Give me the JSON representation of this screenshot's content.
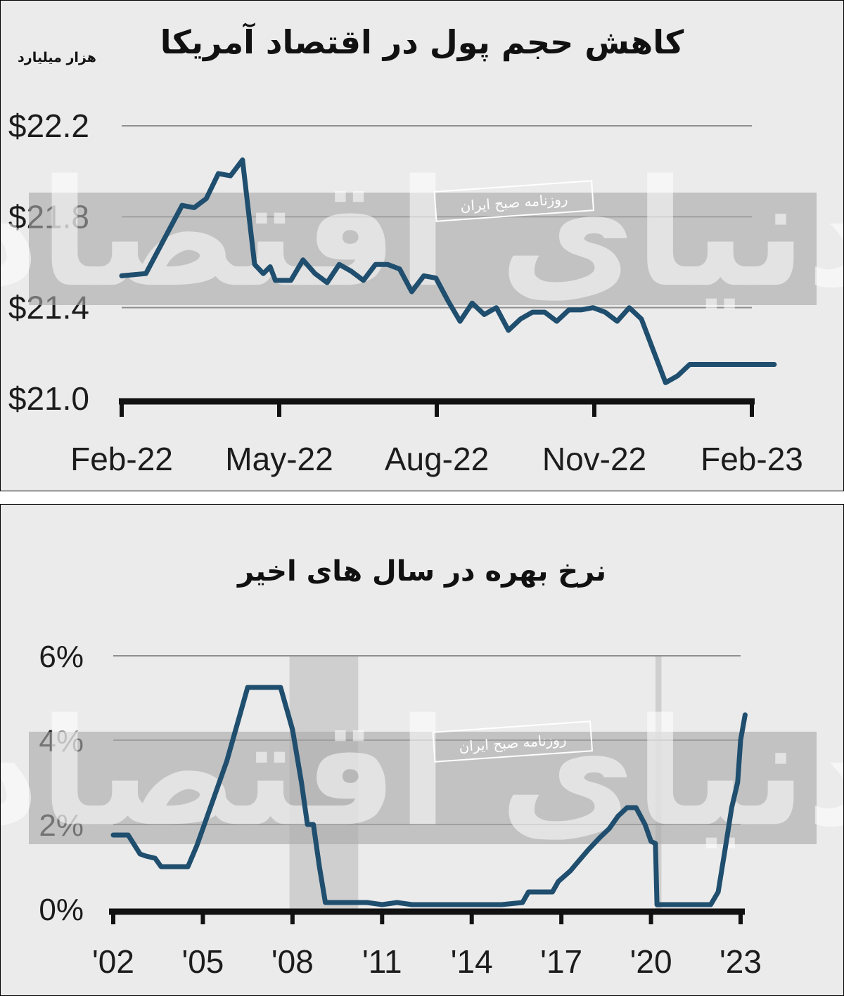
{
  "chart_data": [
    {
      "type": "line",
      "title": "کاهش حجم پول در اقتصاد آمریکا",
      "unit_label": "هزار میلیارد",
      "ylabel": "",
      "xlabel": "",
      "ylim": [
        21.0,
        22.2
      ],
      "yticks": [
        22.2,
        21.8,
        21.4,
        21.0
      ],
      "ytick_labels": [
        "$22.2",
        "$21.8",
        "$21.4",
        "$21.0"
      ],
      "xtick_labels": [
        "Feb-22",
        "May-22",
        "Aug-22",
        "Nov-22",
        "Feb-23"
      ],
      "x_start": "2022-02",
      "x_end": "2023-02",
      "grid": true,
      "line_color": "#1f4e6e",
      "series": [
        {
          "x": [
            "2022-02-01",
            "2022-02-15",
            "2022-03-01",
            "2022-03-08",
            "2022-03-15",
            "2022-03-22",
            "2022-03-29",
            "2022-04-05",
            "2022-04-12",
            "2022-04-19",
            "2022-04-24",
            "2022-04-28",
            "2022-05-01",
            "2022-05-10",
            "2022-05-17",
            "2022-05-24",
            "2022-05-31",
            "2022-06-07",
            "2022-06-14",
            "2022-06-21",
            "2022-06-28",
            "2022-07-05",
            "2022-07-12",
            "2022-07-19",
            "2022-07-26",
            "2022-08-02",
            "2022-08-09",
            "2022-08-16",
            "2022-08-23",
            "2022-08-30",
            "2022-09-06",
            "2022-09-13",
            "2022-09-20",
            "2022-09-27",
            "2022-10-04",
            "2022-10-11",
            "2022-10-18",
            "2022-10-25",
            "2022-11-01",
            "2022-11-08",
            "2022-11-15",
            "2022-11-22",
            "2022-11-29",
            "2022-12-06",
            "2022-12-13",
            "2022-12-20",
            "2022-12-27",
            "2023-01-03",
            "2023-01-10",
            "2023-01-17",
            "2023-01-24",
            "2023-01-31",
            "2023-02-04",
            "2023-02-07",
            "2023-02-14"
          ],
          "values": [
            21.54,
            21.55,
            21.75,
            21.85,
            21.84,
            21.88,
            21.99,
            21.98,
            22.05,
            21.59,
            21.55,
            21.58,
            21.52,
            21.52,
            21.61,
            21.55,
            21.51,
            21.59,
            21.56,
            21.52,
            21.59,
            21.59,
            21.57,
            21.47,
            21.54,
            21.53,
            21.43,
            21.34,
            21.42,
            21.37,
            21.4,
            21.3,
            21.35,
            21.38,
            21.38,
            21.34,
            21.39,
            21.39,
            21.4,
            21.38,
            21.34,
            21.4,
            21.35,
            21.21,
            21.07,
            21.1,
            21.15,
            21.15,
            21.15,
            21.15,
            21.15,
            21.15,
            21.15,
            21.15,
            21.15
          ]
        }
      ]
    },
    {
      "type": "line",
      "title": "نرخ بهره در سال های اخیر",
      "ylabel": "",
      "xlabel": "",
      "ylim": [
        0,
        6
      ],
      "yticks": [
        6,
        4,
        2,
        0
      ],
      "ytick_labels": [
        "6%",
        "4%",
        "2%",
        "0%"
      ],
      "xtick_labels": [
        "'02",
        "'05",
        "'08",
        "'11",
        "'14",
        "'17",
        "'20",
        "'23"
      ],
      "xtick_values": [
        2002,
        2005,
        2008,
        2011,
        2014,
        2017,
        2020,
        2023
      ],
      "xlim": [
        2002,
        2023
      ],
      "grid": true,
      "line_color": "#1f4e6e",
      "shaded_periods": [
        [
          2007.9,
          2010.2
        ],
        [
          2020.15,
          2020.35
        ]
      ],
      "series": [
        {
          "x": [
            2002.0,
            2002.5,
            2002.9,
            2003.1,
            2003.4,
            2003.6,
            2003.7,
            2003.9,
            2004.1,
            2004.5,
            2004.8,
            2005.3,
            2005.8,
            2006.2,
            2006.5,
            2007.2,
            2007.6,
            2008.0,
            2008.3,
            2008.5,
            2008.7,
            2008.9,
            2009.1,
            2009.5,
            2010.0,
            2010.5,
            2011.0,
            2011.5,
            2012.0,
            2013.0,
            2014.0,
            2015.0,
            2015.7,
            2015.9,
            2016.7,
            2016.9,
            2017.3,
            2017.6,
            2017.9,
            2018.3,
            2018.6,
            2018.9,
            2019.2,
            2019.5,
            2019.8,
            2020.0,
            2020.15,
            2020.2,
            2021.0,
            2022.0,
            2022.25,
            2022.5,
            2022.7,
            2022.9,
            2023.0,
            2023.15
          ],
          "values": [
            1.75,
            1.75,
            1.3,
            1.25,
            1.2,
            1.0,
            1.0,
            1.0,
            1.0,
            1.0,
            1.5,
            2.5,
            3.5,
            4.5,
            5.25,
            5.25,
            5.25,
            4.25,
            3.0,
            2.0,
            2.0,
            1.0,
            0.15,
            0.15,
            0.15,
            0.15,
            0.1,
            0.15,
            0.1,
            0.1,
            0.1,
            0.1,
            0.15,
            0.4,
            0.4,
            0.65,
            0.9,
            1.15,
            1.4,
            1.7,
            1.9,
            2.2,
            2.4,
            2.4,
            2.0,
            1.6,
            1.55,
            0.1,
            0.1,
            0.1,
            0.4,
            1.5,
            2.4,
            3.0,
            4.0,
            4.6
          ]
        }
      ]
    }
  ],
  "watermark": {
    "brand": "دنیای اقتصاد",
    "source": "روزنامه صبح ایران"
  }
}
